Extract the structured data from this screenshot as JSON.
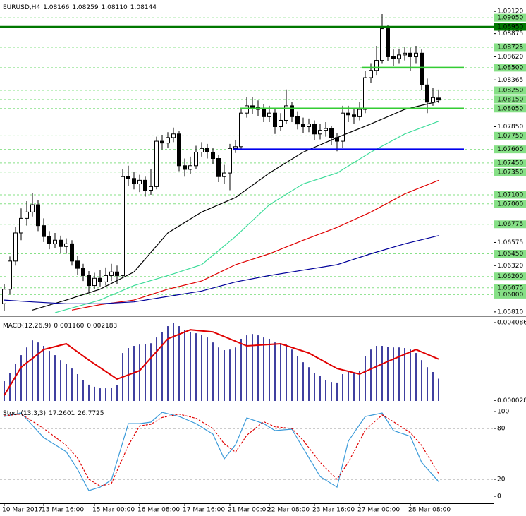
{
  "chart_data": [
    {
      "type": "candlestick",
      "title": "EURUSD,H4",
      "info_labels": [
        "1.08166",
        "1.08259",
        "1.08110",
        "1.08144"
      ],
      "up_color": "#ffffff",
      "down_color": "#000000",
      "xlim": [
        -0.75,
        86.75
      ],
      "ylim": [
        1.0577,
        1.0923
      ],
      "xticks": [
        {
          "value": 0,
          "label": "10 Mar 2017"
        },
        {
          "value": 7,
          "label": "13 Mar 16:00"
        },
        {
          "value": 16,
          "label": "15 Mar 00:00"
        },
        {
          "value": 24,
          "label": "16 Mar 08:00"
        },
        {
          "value": 32,
          "label": "17 Mar 16:00"
        },
        {
          "value": 40,
          "label": "21 Mar 00:00"
        },
        {
          "value": 47,
          "label": "22 Mar 08:00"
        },
        {
          "value": 55,
          "label": "23 Mar 16:00"
        },
        {
          "value": 63,
          "label": "27 Mar 00:00"
        },
        {
          "value": 72,
          "label": "28 Mar 08:00"
        }
      ],
      "yticks": [
        {
          "value": 1.0912,
          "label": "1.09120"
        },
        {
          "value": 1.08875,
          "label": "1.08875"
        },
        {
          "value": 1.0862,
          "label": "1.08620"
        },
        {
          "value": 1.08365,
          "label": "1.08365"
        },
        {
          "value": 1.0785,
          "label": "1.07850"
        },
        {
          "value": 1.06575,
          "label": "1.06575"
        },
        {
          "value": 1.0632,
          "label": "1.06320"
        },
        {
          "value": 1.0581,
          "label": "1.05810"
        }
      ],
      "level_color": "#86e086",
      "levels": [
        {
          "value": 1.0905,
          "label": "1.09050"
        },
        {
          "value": 1.0895,
          "label": "1.08950"
        },
        {
          "value": 1.08725,
          "label": "1.08725"
        },
        {
          "value": 1.085,
          "label": "1.08500"
        },
        {
          "value": 1.0825,
          "label": "1.08250"
        },
        {
          "value": 1.0815,
          "label": "1.08150"
        },
        {
          "value": 1.0805,
          "label": "1.08050"
        },
        {
          "value": 1.0775,
          "label": "1.07750"
        },
        {
          "value": 1.076,
          "label": "1.07600"
        },
        {
          "value": 1.0745,
          "label": "1.07450"
        },
        {
          "value": 1.0735,
          "label": "1.07350"
        },
        {
          "value": 1.071,
          "label": "1.07100"
        },
        {
          "value": 1.07,
          "label": "1.07000"
        },
        {
          "value": 1.06775,
          "label": "1.06775"
        },
        {
          "value": 1.0645,
          "label": "1.06450"
        },
        {
          "value": 1.062,
          "label": "1.06200"
        },
        {
          "value": 1.06075,
          "label": "1.06075"
        },
        {
          "value": 1.06,
          "label": "1.06000"
        }
      ],
      "lines": [
        {
          "value": 1.0895,
          "color": "#007800",
          "from": -0.75,
          "to": 86.75
        },
        {
          "value": 1.085,
          "color": "#33cc33",
          "from": 63.5,
          "to": 81.5
        },
        {
          "value": 1.0805,
          "color": "#33cc33",
          "from": 41.75,
          "to": 81.5
        },
        {
          "value": 1.076,
          "color": "#0000ee",
          "from": 40.5,
          "to": 81.5
        }
      ],
      "candles": [
        [
          1.059,
          1.0612,
          1.0582,
          1.0606
        ],
        [
          1.0606,
          1.0642,
          1.06,
          1.0637
        ],
        [
          1.0637,
          1.0675,
          1.0632,
          1.0668
        ],
        [
          1.0668,
          1.0695,
          1.066,
          1.0684
        ],
        [
          1.0684,
          1.0703,
          1.0676,
          1.0691
        ],
        [
          1.0691,
          1.0712,
          1.0686,
          1.0699
        ],
        [
          1.0699,
          1.0704,
          1.067,
          1.0676
        ],
        [
          1.0676,
          1.0684,
          1.0658,
          1.0664
        ],
        [
          1.0664,
          1.067,
          1.065,
          1.0656
        ],
        [
          1.0656,
          1.0668,
          1.0651,
          1.066
        ],
        [
          1.066,
          1.0665,
          1.0646,
          1.0653
        ],
        [
          1.0653,
          1.0662,
          1.0645,
          1.0656
        ],
        [
          1.0656,
          1.066,
          1.0632,
          1.0637
        ],
        [
          1.0637,
          1.0643,
          1.0622,
          1.0629
        ],
        [
          1.0629,
          1.0634,
          1.0615,
          1.0621
        ],
        [
          1.0621,
          1.0626,
          1.0603,
          1.061
        ],
        [
          1.061,
          1.0624,
          1.0606,
          1.0618
        ],
        [
          1.0618,
          1.0627,
          1.0609,
          1.0614
        ],
        [
          1.0614,
          1.063,
          1.061,
          1.0621
        ],
        [
          1.0621,
          1.0634,
          1.0615,
          1.0625
        ],
        [
          1.0625,
          1.0632,
          1.0612,
          1.0621
        ],
        [
          1.0621,
          1.0738,
          1.0619,
          1.073
        ],
        [
          1.073,
          1.0742,
          1.072,
          1.0728
        ],
        [
          1.0728,
          1.0735,
          1.0716,
          1.0722
        ],
        [
          1.0722,
          1.0732,
          1.0713,
          1.0726
        ],
        [
          1.0726,
          1.073,
          1.0708,
          1.0715
        ],
        [
          1.0715,
          1.0738,
          1.071,
          1.0719
        ],
        [
          1.0719,
          1.0774,
          1.0716,
          1.0769
        ],
        [
          1.0769,
          1.0776,
          1.076,
          1.0767
        ],
        [
          1.0767,
          1.0779,
          1.0762,
          1.0773
        ],
        [
          1.0773,
          1.0784,
          1.0768,
          1.0777
        ],
        [
          1.0777,
          1.078,
          1.0736,
          1.0742
        ],
        [
          1.0742,
          1.075,
          1.073,
          1.0738
        ],
        [
          1.0738,
          1.0752,
          1.0733,
          1.0742
        ],
        [
          1.0742,
          1.0764,
          1.0738,
          1.0757
        ],
        [
          1.0757,
          1.0768,
          1.0752,
          1.0761
        ],
        [
          1.0761,
          1.0766,
          1.075,
          1.0757
        ],
        [
          1.0757,
          1.0762,
          1.0744,
          1.075
        ],
        [
          1.075,
          1.0754,
          1.0724,
          1.073
        ],
        [
          1.073,
          1.0743,
          1.0722,
          1.0734
        ],
        [
          1.0734,
          1.0766,
          1.0715,
          1.0761
        ],
        [
          1.0761,
          1.077,
          1.0756,
          1.0763
        ],
        [
          1.0763,
          1.0806,
          1.076,
          1.08
        ],
        [
          1.08,
          1.0818,
          1.0795,
          1.0808
        ],
        [
          1.0808,
          1.0818,
          1.0799,
          1.0806
        ],
        [
          1.0806,
          1.0814,
          1.0797,
          1.0804
        ],
        [
          1.0804,
          1.081,
          1.079,
          1.0796
        ],
        [
          1.0796,
          1.0808,
          1.079,
          1.08
        ],
        [
          1.08,
          1.0805,
          1.0777,
          1.0785
        ],
        [
          1.0785,
          1.08,
          1.078,
          1.0792
        ],
        [
          1.0792,
          1.0826,
          1.0788,
          1.0808
        ],
        [
          1.0808,
          1.0812,
          1.079,
          1.0796
        ],
        [
          1.0796,
          1.0802,
          1.0782,
          1.0788
        ],
        [
          1.0788,
          1.0795,
          1.0778,
          1.0785
        ],
        [
          1.0785,
          1.0794,
          1.0779,
          1.0788
        ],
        [
          1.0788,
          1.0792,
          1.077,
          1.0777
        ],
        [
          1.0777,
          1.0788,
          1.0771,
          1.0781
        ],
        [
          1.0781,
          1.079,
          1.0774,
          1.0783
        ],
        [
          1.0783,
          1.0786,
          1.0765,
          1.0773
        ],
        [
          1.0773,
          1.0778,
          1.0758,
          1.0769
        ],
        [
          1.0769,
          1.0808,
          1.0762,
          1.08
        ],
        [
          1.08,
          1.0808,
          1.079,
          1.0798
        ],
        [
          1.0798,
          1.0806,
          1.0788,
          1.0796
        ],
        [
          1.0796,
          1.0812,
          1.0792,
          1.0804
        ],
        [
          1.0804,
          1.0846,
          1.08,
          1.0839
        ],
        [
          1.0839,
          1.0855,
          1.0833,
          1.0847
        ],
        [
          1.0847,
          1.0874,
          1.0842,
          1.0858
        ],
        [
          1.0858,
          1.0909,
          1.0855,
          1.0893
        ],
        [
          1.0893,
          1.0897,
          1.0857,
          1.0862
        ],
        [
          1.0862,
          1.087,
          1.0852,
          1.086
        ],
        [
          1.086,
          1.0871,
          1.0855,
          1.0864
        ],
        [
          1.0864,
          1.0873,
          1.0858,
          1.0866
        ],
        [
          1.0866,
          1.0872,
          1.0846,
          1.0862
        ],
        [
          1.0862,
          1.0874,
          1.0855,
          1.0866
        ],
        [
          1.0866,
          1.087,
          1.0825,
          1.0831
        ],
        [
          1.0831,
          1.0838,
          1.08,
          1.0812
        ],
        [
          1.0812,
          1.0828,
          1.0808,
          1.0817
        ],
        [
          1.08166,
          1.08259,
          1.0811,
          1.08144
        ]
      ],
      "series": [
        {
          "color": "#000000",
          "x": [
            5,
            11,
            17,
            23,
            29,
            35,
            41,
            47,
            53,
            59,
            65,
            71,
            77
          ],
          "values": [
            1.0583,
            1.0594,
            1.0606,
            1.0625,
            1.0668,
            1.0691,
            1.0707,
            1.0734,
            1.0757,
            1.0773,
            1.0788,
            1.0804,
            1.0813
          ]
        },
        {
          "color": "#3ddc9a",
          "x": [
            9,
            17,
            23,
            29,
            35,
            41,
            47,
            53,
            59,
            65,
            71,
            77
          ],
          "values": [
            1.058,
            1.0594,
            1.061,
            1.0621,
            1.0633,
            1.0664,
            1.0699,
            1.0722,
            1.0734,
            1.0757,
            1.0777,
            1.0791
          ]
        },
        {
          "color": "#e00000",
          "x": [
            12,
            17,
            23,
            29,
            35,
            41,
            47,
            53,
            59,
            65,
            71,
            77
          ],
          "values": [
            1.0583,
            1.0589,
            1.0594,
            1.0606,
            1.0615,
            1.0633,
            1.0645,
            1.066,
            1.0674,
            1.0691,
            1.0711,
            1.0726
          ]
        },
        {
          "color": "#00009a",
          "x": [
            0,
            5,
            11,
            17,
            23,
            29,
            35,
            41,
            47,
            53,
            59,
            65,
            71,
            77
          ],
          "values": [
            1.0594,
            1.0592,
            1.059,
            1.059,
            1.0592,
            1.0598,
            1.0604,
            1.0614,
            1.0621,
            1.0627,
            1.0633,
            1.0645,
            1.0656,
            1.0665
          ]
        }
      ]
    },
    {
      "type": "macd",
      "title": "MACD(12,26,9)",
      "info_labels": [
        "0.001160",
        "0.002183"
      ],
      "ylim": [
        -0.00011,
        0.00427
      ],
      "yticks": [
        {
          "value": 0.004086,
          "label": "0.004086"
        },
        {
          "value": 2.8e-05,
          "label": "0.000028"
        }
      ],
      "histogram": {
        "color": "#000080",
        "values": [
          0.00103,
          0.00147,
          0.00195,
          0.00239,
          0.00279,
          0.00316,
          0.00305,
          0.00287,
          0.00261,
          0.00239,
          0.00213,
          0.00195,
          0.00169,
          0.0014,
          0.0011,
          0.00085,
          0.00074,
          0.00066,
          0.00066,
          0.0007,
          0.00081,
          0.0025,
          0.00276,
          0.00287,
          0.00294,
          0.00298,
          0.00301,
          0.00331,
          0.0036,
          0.0039,
          0.00408,
          0.0039,
          0.00368,
          0.0036,
          0.00353,
          0.00346,
          0.00331,
          0.00305,
          0.00279,
          0.00265,
          0.00268,
          0.00279,
          0.00324,
          0.00342,
          0.00349,
          0.00342,
          0.00331,
          0.00324,
          0.00305,
          0.00298,
          0.00294,
          0.00268,
          0.00232,
          0.00202,
          0.00176,
          0.00147,
          0.00132,
          0.0011,
          0.00099,
          0.00096,
          0.0014,
          0.00151,
          0.00147,
          0.00158,
          0.00232,
          0.00268,
          0.00287,
          0.00287,
          0.00283,
          0.00279,
          0.00279,
          0.00276,
          0.00268,
          0.0025,
          0.00213,
          0.00176,
          0.00151,
          0.00116
        ]
      },
      "series": [
        {
          "color": "#e00000",
          "x": [
            0,
            3,
            7,
            11,
            15,
            20,
            24,
            29,
            33,
            37,
            43,
            49,
            54,
            59,
            63,
            68,
            73,
            77
          ],
          "values": [
            0.00029,
            0.00176,
            0.00268,
            0.00298,
            0.00213,
            0.00114,
            0.00158,
            0.00324,
            0.00371,
            0.0036,
            0.00287,
            0.00298,
            0.0025,
            0.00169,
            0.0014,
            0.00206,
            0.00268,
            0.002183
          ]
        }
      ]
    },
    {
      "type": "stochastic",
      "title": "Stoch(13,3,3)",
      "info_labels": [
        "17.2601",
        "26.7725"
      ],
      "ylim": [
        -8.3,
        106.7
      ],
      "yticks": [
        100,
        80,
        20,
        0
      ],
      "levels": [
        80,
        20
      ],
      "series": [
        {
          "color": "#3a9ad9",
          "x": [
            0,
            3,
            7,
            11,
            13,
            15,
            17,
            19,
            22,
            24,
            26,
            28,
            31,
            34,
            37,
            39,
            41,
            43,
            46,
            48,
            51,
            53,
            56,
            59,
            61,
            64,
            67,
            69,
            72,
            74,
            77
          ],
          "values": [
            94.2,
            98.3,
            69.2,
            52.5,
            31.7,
            6.7,
            10.8,
            19.2,
            85.8,
            85.8,
            87.5,
            99,
            94.2,
            85.8,
            73.3,
            44.2,
            60.8,
            92.5,
            85.8,
            77.5,
            79.2,
            56.7,
            23.3,
            10.8,
            65,
            94.2,
            98.3,
            77.5,
            70.8,
            40,
            17.2601
          ]
        },
        {
          "color": "#e00000",
          "dashed": true,
          "x": [
            0,
            3,
            7,
            11,
            13,
            15,
            17,
            19,
            22,
            24,
            26,
            28,
            31,
            34,
            37,
            39,
            41,
            43,
            46,
            48,
            51,
            53,
            56,
            59,
            61,
            64,
            67,
            69,
            72,
            74,
            77
          ],
          "values": [
            95,
            97,
            80,
            60,
            45,
            20,
            12,
            15,
            60,
            83,
            85,
            93,
            97,
            92,
            80,
            62,
            52,
            72,
            88,
            82,
            80,
            66,
            40,
            20,
            40,
            78,
            96,
            88,
            75,
            60,
            26.7725
          ]
        }
      ]
    }
  ]
}
